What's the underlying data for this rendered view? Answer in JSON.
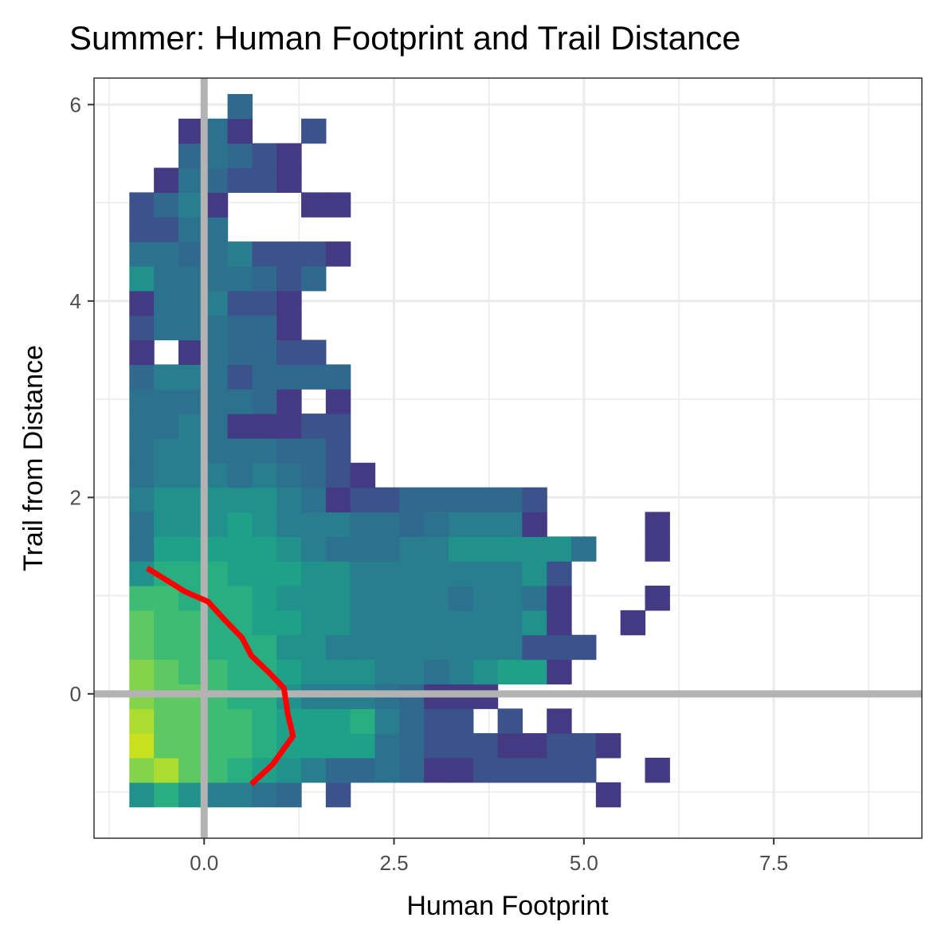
{
  "chart_data": {
    "type": "heatmap",
    "title": "Summer: Human Footprint and Trail Distance",
    "xlabel": "Human Footprint",
    "ylabel": "Trail from Distance",
    "xlim": [
      -1.45,
      9.45
    ],
    "ylim": [
      -1.47,
      6.27
    ],
    "grid": true,
    "legend": "none",
    "x_ticks": [
      {
        "value": 0.0,
        "label": "0.0"
      },
      {
        "value": 2.5,
        "label": "2.5"
      },
      {
        "value": 5.0,
        "label": "5.0"
      },
      {
        "value": 7.5,
        "label": "7.5"
      }
    ],
    "y_ticks": [
      {
        "value": 0,
        "label": "0"
      },
      {
        "value": 2,
        "label": "2"
      },
      {
        "value": 4,
        "label": "4"
      },
      {
        "value": 6,
        "label": "6"
      }
    ],
    "reference_lines": {
      "x": 0,
      "y": 0,
      "color": "#b3b3b3"
    },
    "bin_width": {
      "x": 0.3233,
      "y": 0.2503
    },
    "bin_origin": {
      "x": -0.985,
      "y": -1.151
    },
    "colors": {
      "c1": "#443983",
      "c2": "#3b528b",
      "c3": "#31688e",
      "c4": "#2c728e",
      "c5": "#287d8e",
      "c6": "#21918c",
      "c7": "#1fa088",
      "c8": "#28ae80",
      "c9": "#3fbc73",
      "c10": "#5ec962",
      "c11": "#84d44b",
      "c12": "#addc30",
      "c13": "#c8e020"
    },
    "cells": [
      [
        0,
        0,
        6
      ],
      [
        1,
        0,
        8
      ],
      [
        2,
        0,
        6
      ],
      [
        3,
        0,
        5
      ],
      [
        4,
        0,
        5
      ],
      [
        5,
        0,
        4
      ],
      [
        6,
        0,
        3
      ],
      [
        8,
        0,
        2
      ],
      [
        19,
        0,
        1
      ],
      [
        0,
        1,
        11
      ],
      [
        1,
        1,
        12
      ],
      [
        2,
        1,
        10
      ],
      [
        3,
        1,
        9
      ],
      [
        4,
        1,
        8
      ],
      [
        5,
        1,
        7
      ],
      [
        6,
        1,
        6
      ],
      [
        7,
        1,
        5
      ],
      [
        8,
        1,
        3
      ],
      [
        9,
        1,
        3
      ],
      [
        10,
        1,
        4
      ],
      [
        11,
        1,
        3
      ],
      [
        12,
        1,
        1
      ],
      [
        13,
        1,
        1
      ],
      [
        14,
        1,
        2
      ],
      [
        15,
        1,
        2
      ],
      [
        16,
        1,
        2
      ],
      [
        17,
        1,
        2
      ],
      [
        18,
        1,
        2
      ],
      [
        21,
        1,
        1
      ],
      [
        0,
        2,
        13
      ],
      [
        1,
        2,
        10
      ],
      [
        2,
        2,
        10
      ],
      [
        3,
        2,
        9
      ],
      [
        4,
        2,
        9
      ],
      [
        5,
        2,
        8
      ],
      [
        6,
        2,
        7
      ],
      [
        7,
        2,
        7
      ],
      [
        8,
        2,
        7
      ],
      [
        9,
        2,
        7
      ],
      [
        10,
        2,
        4
      ],
      [
        11,
        2,
        3
      ],
      [
        12,
        2,
        2
      ],
      [
        13,
        2,
        2
      ],
      [
        14,
        2,
        2
      ],
      [
        15,
        2,
        1
      ],
      [
        16,
        2,
        1
      ],
      [
        17,
        2,
        2
      ],
      [
        18,
        2,
        2
      ],
      [
        19,
        2,
        1
      ],
      [
        0,
        3,
        12
      ],
      [
        1,
        3,
        10
      ],
      [
        2,
        3,
        10
      ],
      [
        3,
        3,
        9
      ],
      [
        4,
        3,
        9
      ],
      [
        5,
        3,
        8
      ],
      [
        6,
        3,
        7
      ],
      [
        7,
        3,
        7
      ],
      [
        8,
        3,
        7
      ],
      [
        9,
        3,
        8
      ],
      [
        10,
        3,
        5
      ],
      [
        11,
        3,
        3
      ],
      [
        12,
        3,
        2
      ],
      [
        13,
        3,
        2
      ],
      [
        15,
        3,
        2
      ],
      [
        17,
        3,
        1
      ],
      [
        0,
        4,
        11
      ],
      [
        1,
        4,
        10
      ],
      [
        2,
        4,
        10
      ],
      [
        3,
        4,
        9
      ],
      [
        4,
        4,
        8
      ],
      [
        5,
        4,
        8
      ],
      [
        6,
        4,
        6
      ],
      [
        7,
        4,
        5
      ],
      [
        8,
        4,
        5
      ],
      [
        9,
        4,
        5
      ],
      [
        10,
        4,
        4
      ],
      [
        11,
        4,
        3
      ],
      [
        12,
        4,
        1
      ],
      [
        13,
        4,
        1
      ],
      [
        14,
        4,
        1
      ],
      [
        0,
        5,
        11
      ],
      [
        1,
        5,
        10
      ],
      [
        2,
        5,
        9
      ],
      [
        3,
        5,
        9
      ],
      [
        4,
        5,
        8
      ],
      [
        5,
        5,
        8
      ],
      [
        6,
        5,
        7
      ],
      [
        7,
        5,
        6
      ],
      [
        8,
        5,
        6
      ],
      [
        9,
        5,
        6
      ],
      [
        10,
        5,
        5
      ],
      [
        11,
        5,
        5
      ],
      [
        12,
        5,
        4
      ],
      [
        13,
        5,
        5
      ],
      [
        14,
        5,
        6
      ],
      [
        15,
        5,
        7
      ],
      [
        16,
        5,
        7
      ],
      [
        17,
        5,
        1
      ],
      [
        0,
        6,
        10
      ],
      [
        1,
        6,
        9
      ],
      [
        2,
        6,
        9
      ],
      [
        3,
        6,
        8
      ],
      [
        4,
        6,
        8
      ],
      [
        5,
        6,
        8
      ],
      [
        6,
        6,
        6
      ],
      [
        7,
        6,
        6
      ],
      [
        8,
        6,
        5
      ],
      [
        9,
        6,
        5
      ],
      [
        10,
        6,
        5
      ],
      [
        11,
        6,
        5
      ],
      [
        12,
        6,
        5
      ],
      [
        13,
        6,
        5
      ],
      [
        14,
        6,
        5
      ],
      [
        15,
        6,
        5
      ],
      [
        16,
        6,
        2
      ],
      [
        17,
        6,
        2
      ],
      [
        18,
        6,
        2
      ],
      [
        0,
        7,
        10
      ],
      [
        1,
        7,
        9
      ],
      [
        2,
        7,
        9
      ],
      [
        3,
        7,
        8
      ],
      [
        4,
        7,
        8
      ],
      [
        5,
        7,
        7
      ],
      [
        6,
        7,
        7
      ],
      [
        7,
        7,
        6
      ],
      [
        8,
        7,
        6
      ],
      [
        9,
        7,
        5
      ],
      [
        10,
        7,
        5
      ],
      [
        11,
        7,
        5
      ],
      [
        12,
        7,
        5
      ],
      [
        13,
        7,
        5
      ],
      [
        14,
        7,
        5
      ],
      [
        15,
        7,
        5
      ],
      [
        16,
        7,
        6
      ],
      [
        17,
        7,
        1
      ],
      [
        20,
        7,
        1
      ],
      [
        0,
        8,
        9
      ],
      [
        1,
        8,
        9
      ],
      [
        2,
        8,
        8
      ],
      [
        3,
        8,
        8
      ],
      [
        4,
        8,
        8
      ],
      [
        5,
        8,
        7
      ],
      [
        6,
        8,
        6
      ],
      [
        7,
        8,
        6
      ],
      [
        8,
        8,
        6
      ],
      [
        9,
        8,
        5
      ],
      [
        10,
        8,
        5
      ],
      [
        11,
        8,
        5
      ],
      [
        12,
        8,
        5
      ],
      [
        13,
        8,
        4
      ],
      [
        14,
        8,
        5
      ],
      [
        15,
        8,
        5
      ],
      [
        16,
        8,
        4
      ],
      [
        17,
        8,
        1
      ],
      [
        21,
        8,
        1
      ],
      [
        0,
        9,
        6
      ],
      [
        1,
        9,
        8
      ],
      [
        2,
        9,
        8
      ],
      [
        3,
        9,
        8
      ],
      [
        4,
        9,
        7
      ],
      [
        5,
        9,
        7
      ],
      [
        6,
        9,
        7
      ],
      [
        7,
        9,
        6
      ],
      [
        8,
        9,
        6
      ],
      [
        9,
        9,
        5
      ],
      [
        10,
        9,
        5
      ],
      [
        11,
        9,
        5
      ],
      [
        12,
        9,
        5
      ],
      [
        13,
        9,
        5
      ],
      [
        14,
        9,
        5
      ],
      [
        15,
        9,
        5
      ],
      [
        16,
        9,
        6
      ],
      [
        17,
        9,
        2
      ],
      [
        0,
        10,
        4
      ],
      [
        1,
        10,
        7
      ],
      [
        2,
        10,
        7
      ],
      [
        3,
        10,
        7
      ],
      [
        4,
        10,
        7
      ],
      [
        5,
        10,
        7
      ],
      [
        6,
        10,
        6
      ],
      [
        7,
        10,
        5
      ],
      [
        8,
        10,
        4
      ],
      [
        9,
        10,
        4
      ],
      [
        10,
        10,
        4
      ],
      [
        11,
        10,
        5
      ],
      [
        12,
        10,
        5
      ],
      [
        13,
        10,
        6
      ],
      [
        14,
        10,
        6
      ],
      [
        15,
        10,
        6
      ],
      [
        16,
        10,
        6
      ],
      [
        17,
        10,
        6
      ],
      [
        18,
        10,
        4
      ],
      [
        21,
        10,
        1
      ],
      [
        0,
        11,
        4
      ],
      [
        1,
        11,
        6
      ],
      [
        2,
        11,
        6
      ],
      [
        3,
        11,
        6
      ],
      [
        4,
        11,
        7
      ],
      [
        5,
        11,
        6
      ],
      [
        6,
        11,
        5
      ],
      [
        7,
        11,
        5
      ],
      [
        8,
        11,
        5
      ],
      [
        9,
        11,
        4
      ],
      [
        10,
        11,
        4
      ],
      [
        11,
        11,
        3
      ],
      [
        12,
        11,
        4
      ],
      [
        13,
        11,
        5
      ],
      [
        14,
        11,
        5
      ],
      [
        15,
        11,
        5
      ],
      [
        16,
        11,
        1
      ],
      [
        21,
        11,
        1
      ],
      [
        0,
        12,
        5
      ],
      [
        1,
        12,
        6
      ],
      [
        2,
        12,
        6
      ],
      [
        3,
        12,
        6
      ],
      [
        4,
        12,
        6
      ],
      [
        5,
        12,
        6
      ],
      [
        6,
        12,
        5
      ],
      [
        7,
        12,
        4
      ],
      [
        8,
        12,
        1
      ],
      [
        9,
        12,
        2
      ],
      [
        10,
        12,
        2
      ],
      [
        11,
        12,
        3
      ],
      [
        12,
        12,
        3
      ],
      [
        13,
        12,
        3
      ],
      [
        14,
        12,
        3
      ],
      [
        15,
        12,
        3
      ],
      [
        16,
        12,
        2
      ],
      [
        0,
        13,
        4
      ],
      [
        1,
        13,
        5
      ],
      [
        2,
        13,
        5
      ],
      [
        3,
        13,
        5
      ],
      [
        4,
        13,
        4
      ],
      [
        5,
        13,
        5
      ],
      [
        6,
        13,
        4
      ],
      [
        7,
        13,
        3
      ],
      [
        8,
        13,
        2
      ],
      [
        9,
        13,
        1
      ],
      [
        0,
        14,
        4
      ],
      [
        1,
        14,
        5
      ],
      [
        2,
        14,
        5
      ],
      [
        3,
        14,
        4
      ],
      [
        4,
        14,
        4
      ],
      [
        5,
        14,
        4
      ],
      [
        6,
        14,
        3
      ],
      [
        7,
        14,
        3
      ],
      [
        8,
        14,
        2
      ],
      [
        0,
        15,
        4
      ],
      [
        1,
        15,
        4
      ],
      [
        2,
        15,
        5
      ],
      [
        3,
        15,
        4
      ],
      [
        4,
        15,
        1
      ],
      [
        5,
        15,
        1
      ],
      [
        6,
        15,
        1
      ],
      [
        7,
        15,
        2
      ],
      [
        8,
        15,
        2
      ],
      [
        0,
        16,
        4
      ],
      [
        1,
        16,
        4
      ],
      [
        2,
        16,
        4
      ],
      [
        3,
        16,
        4
      ],
      [
        4,
        16,
        4
      ],
      [
        5,
        16,
        3
      ],
      [
        6,
        16,
        1
      ],
      [
        8,
        16,
        1
      ],
      [
        0,
        17,
        3
      ],
      [
        1,
        17,
        5
      ],
      [
        2,
        17,
        5
      ],
      [
        3,
        17,
        4
      ],
      [
        4,
        17,
        2
      ],
      [
        5,
        17,
        3
      ],
      [
        6,
        17,
        3
      ],
      [
        7,
        17,
        3
      ],
      [
        8,
        17,
        3
      ],
      [
        0,
        18,
        1
      ],
      [
        2,
        18,
        1
      ],
      [
        3,
        18,
        4
      ],
      [
        4,
        18,
        3
      ],
      [
        5,
        18,
        3
      ],
      [
        6,
        18,
        2
      ],
      [
        7,
        18,
        2
      ],
      [
        0,
        19,
        2
      ],
      [
        1,
        19,
        4
      ],
      [
        2,
        19,
        4
      ],
      [
        3,
        19,
        4
      ],
      [
        4,
        19,
        3
      ],
      [
        5,
        19,
        3
      ],
      [
        6,
        19,
        1
      ],
      [
        0,
        20,
        1
      ],
      [
        1,
        20,
        4
      ],
      [
        2,
        20,
        4
      ],
      [
        3,
        20,
        5
      ],
      [
        4,
        20,
        2
      ],
      [
        5,
        20,
        2
      ],
      [
        6,
        20,
        1
      ],
      [
        0,
        21,
        6
      ],
      [
        1,
        21,
        4
      ],
      [
        2,
        21,
        4
      ],
      [
        3,
        21,
        4
      ],
      [
        4,
        21,
        4
      ],
      [
        5,
        21,
        3
      ],
      [
        6,
        21,
        2
      ],
      [
        7,
        21,
        3
      ],
      [
        0,
        22,
        4
      ],
      [
        1,
        22,
        4
      ],
      [
        2,
        22,
        3
      ],
      [
        3,
        22,
        4
      ],
      [
        4,
        22,
        5
      ],
      [
        5,
        22,
        2
      ],
      [
        6,
        22,
        2
      ],
      [
        7,
        22,
        2
      ],
      [
        8,
        22,
        1
      ],
      [
        0,
        23,
        2
      ],
      [
        1,
        23,
        2
      ],
      [
        2,
        23,
        4
      ],
      [
        3,
        23,
        4
      ],
      [
        0,
        24,
        2
      ],
      [
        1,
        24,
        3
      ],
      [
        2,
        24,
        5
      ],
      [
        3,
        24,
        1
      ],
      [
        7,
        24,
        1
      ],
      [
        8,
        24,
        1
      ],
      [
        1,
        25,
        1
      ],
      [
        2,
        25,
        4
      ],
      [
        3,
        25,
        3
      ],
      [
        4,
        25,
        2
      ],
      [
        5,
        25,
        2
      ],
      [
        6,
        25,
        1
      ],
      [
        2,
        26,
        3
      ],
      [
        3,
        26,
        4
      ],
      [
        4,
        26,
        3
      ],
      [
        5,
        26,
        2
      ],
      [
        6,
        26,
        1
      ],
      [
        2,
        27,
        1
      ],
      [
        3,
        27,
        4
      ],
      [
        4,
        27,
        1
      ],
      [
        7,
        27,
        2
      ],
      [
        4,
        28,
        3
      ]
    ],
    "trend_line": {
      "color": "#ff0000",
      "x": [
        -0.75,
        -0.5,
        -0.25,
        -0.1,
        0.05,
        0.25,
        0.5,
        0.62,
        0.85,
        1.05,
        1.1,
        1.17,
        0.9,
        0.62
      ],
      "y": [
        1.28,
        1.16,
        1.04,
        0.99,
        0.94,
        0.77,
        0.57,
        0.39,
        0.22,
        0.06,
        -0.2,
        -0.43,
        -0.72,
        -0.92
      ]
    }
  }
}
